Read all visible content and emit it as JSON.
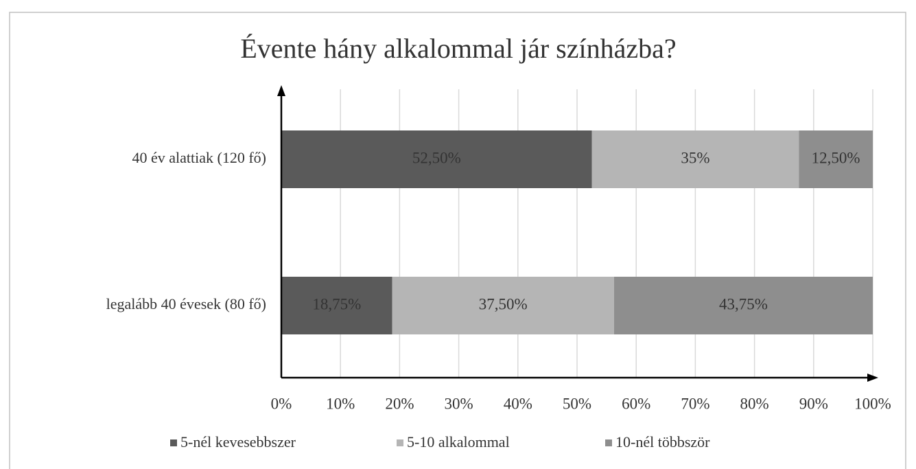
{
  "chart_data": {
    "type": "stacked_bar_horizontal",
    "title": "Évente hány alkalommal jár színházba?",
    "categories": [
      "40 év alattiak (120 fő)",
      "legalább 40 évesek (80 fő)"
    ],
    "series": [
      {
        "name": "5-nél kevesebbszer",
        "color": "#5a5a5a",
        "values": [
          52.5,
          18.75
        ],
        "value_labels": [
          "52,50%",
          "18,75%"
        ]
      },
      {
        "name": "5-10 alkalommal",
        "color": "#b5b5b5",
        "values": [
          35,
          37.5
        ],
        "value_labels": [
          "35%",
          "37,50%"
        ]
      },
      {
        "name": "10-nél többször",
        "color": "#8e8e8e",
        "values": [
          12.5,
          43.75
        ],
        "value_labels": [
          "12,50%",
          "43,75%"
        ]
      }
    ],
    "xlim": [
      0,
      100
    ],
    "xticks": [
      {
        "value": 0,
        "label": "0%"
      },
      {
        "value": 10,
        "label": "10%"
      },
      {
        "value": 20,
        "label": "20%"
      },
      {
        "value": 30,
        "label": "30%"
      },
      {
        "value": 40,
        "label": "40%"
      },
      {
        "value": 50,
        "label": "50%"
      },
      {
        "value": 60,
        "label": "60%"
      },
      {
        "value": 70,
        "label": "70%"
      },
      {
        "value": 80,
        "label": "80%"
      },
      {
        "value": 90,
        "label": "90%"
      },
      {
        "value": 100,
        "label": "100%"
      }
    ],
    "grid": true,
    "legend": "bottom"
  }
}
